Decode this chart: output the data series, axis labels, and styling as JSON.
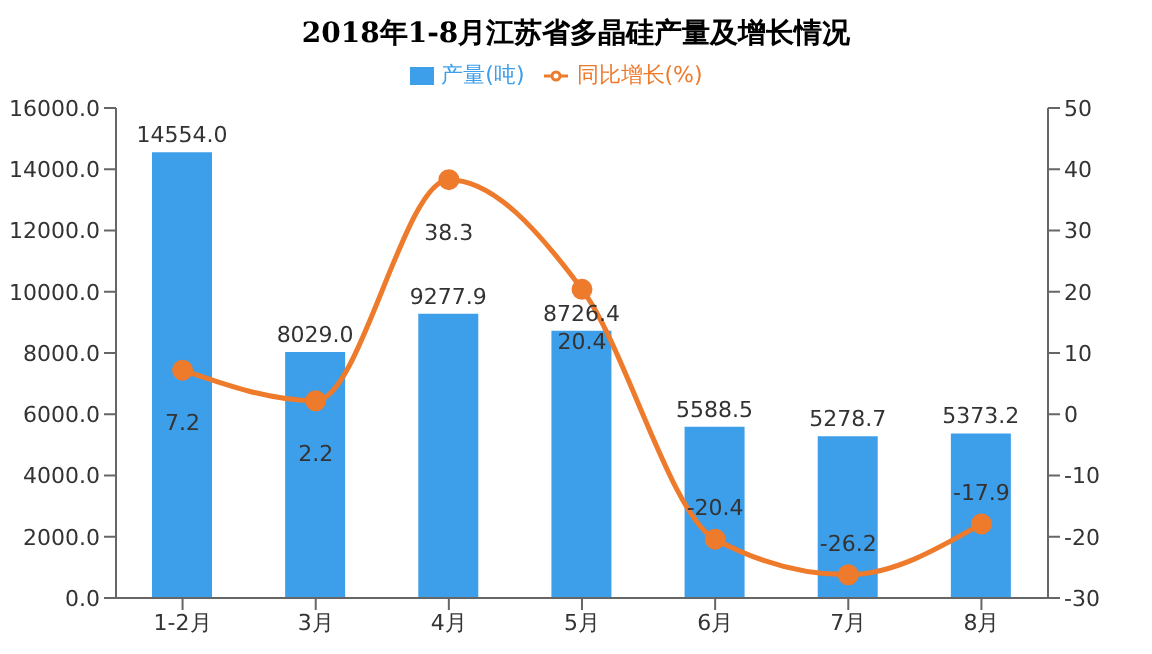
{
  "chart_data": {
    "type": "bar",
    "title": "2018年1-8月江苏省多晶硅产量及增长情况",
    "categories": [
      "1-2月",
      "3月",
      "4月",
      "5月",
      "6月",
      "7月",
      "8月"
    ],
    "series": [
      {
        "name": "产量(吨)",
        "color": "#3d9ee9",
        "values": [
          14554.0,
          8029.0,
          9277.9,
          8726.4,
          5588.5,
          5278.7,
          5373.2
        ],
        "value_labels": [
          "14554.0",
          "8029.0",
          "9277.9",
          "8726.4",
          "5588.5",
          "5278.7",
          "5373.2"
        ]
      },
      {
        "name": "同比增长(%)",
        "type": "line",
        "axis": "y2",
        "color": "#ee7a2c",
        "marker": "circle",
        "values": [
          7.2,
          2.2,
          38.3,
          20.4,
          -20.4,
          -26.2,
          -17.9
        ],
        "value_labels": [
          "7.2",
          "2.2",
          "38.3",
          "20.4",
          "-20.4",
          "-26.2",
          "-17.9"
        ]
      }
    ],
    "ylim": [
      0,
      16000
    ],
    "yticks": [
      {
        "value": 0,
        "label": "0.0"
      },
      {
        "value": 2000,
        "label": "2000.0"
      },
      {
        "value": 4000,
        "label": "4000.0"
      },
      {
        "value": 6000,
        "label": "6000.0"
      },
      {
        "value": 8000,
        "label": "8000.0"
      },
      {
        "value": 10000,
        "label": "10000.0"
      },
      {
        "value": 12000,
        "label": "12000.0"
      },
      {
        "value": 14000,
        "label": "14000.0"
      },
      {
        "value": 16000,
        "label": "16000.0"
      }
    ],
    "y2lim": [
      -30,
      50
    ],
    "y2ticks": [
      -30,
      -20,
      -10,
      0,
      10,
      20,
      30,
      40,
      50
    ],
    "grid": false,
    "legend": "top"
  }
}
